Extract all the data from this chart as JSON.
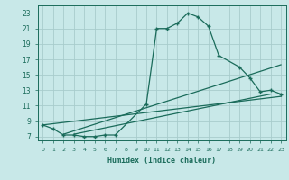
{
  "xlabel": "Humidex (Indice chaleur)",
  "bg_color": "#c8e8e8",
  "grid_color": "#a8cccc",
  "line_color": "#1a6b5a",
  "xlim": [
    -0.5,
    23.5
  ],
  "ylim": [
    6.5,
    24.0
  ],
  "yticks": [
    7,
    9,
    11,
    13,
    15,
    17,
    19,
    21,
    23
  ],
  "xticks": [
    0,
    1,
    2,
    3,
    4,
    5,
    6,
    7,
    8,
    9,
    10,
    11,
    12,
    13,
    14,
    15,
    16,
    17,
    18,
    19,
    20,
    21,
    22,
    23
  ],
  "curve1_x": [
    0,
    1,
    2,
    3,
    4,
    5,
    6,
    7,
    10,
    11,
    12,
    13,
    14,
    15,
    16,
    17,
    19,
    20,
    21,
    22,
    23
  ],
  "curve1_y": [
    8.5,
    8.0,
    7.2,
    7.2,
    7.0,
    7.0,
    7.2,
    7.2,
    11.2,
    21.0,
    21.0,
    21.7,
    23.0,
    22.5,
    21.3,
    17.5,
    16.0,
    14.6,
    12.8,
    13.0,
    12.5
  ],
  "line2_x": [
    2,
    23
  ],
  "line2_y": [
    7.3,
    16.3
  ],
  "line3_x": [
    3,
    22
  ],
  "line3_y": [
    7.3,
    12.5
  ],
  "line4_x": [
    0,
    23
  ],
  "line4_y": [
    8.5,
    12.2
  ]
}
